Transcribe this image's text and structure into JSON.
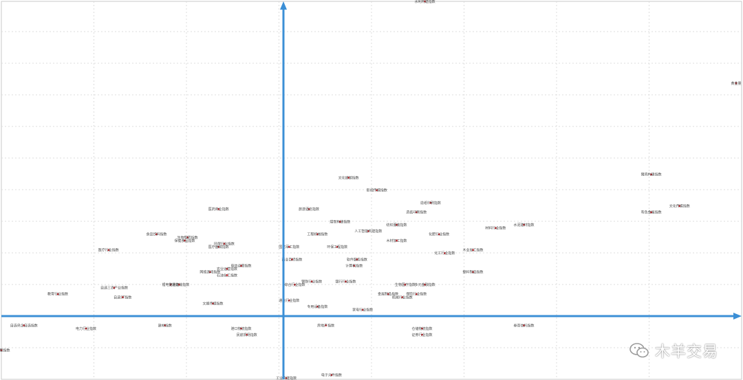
{
  "chart_data": {
    "type": "scatter",
    "title": "",
    "xlabel": "",
    "ylabel": "",
    "grid": true,
    "xlim": [
      -10,
      16
    ],
    "ylim": [
      -2,
      10
    ],
    "points": [
      {
        "label": "水利构建指数",
        "x": 5.0,
        "y": 10.0
      },
      {
        "label": "黄金量",
        "x": 16.0,
        "y": 7.4
      },
      {
        "label": "猪肉构建指数",
        "x": 13.0,
        "y": 4.5
      },
      {
        "label": "文化传媒指数",
        "x": 14.0,
        "y": 3.5
      },
      {
        "label": "有色金属指数",
        "x": 13.0,
        "y": 3.3
      },
      {
        "label": "文化旅游指数",
        "x": 2.3,
        "y": 4.4
      },
      {
        "label": "影视传媒指数",
        "x": 3.3,
        "y": 4.0
      },
      {
        "label": "造纸印刷指数",
        "x": 5.2,
        "y": 3.6
      },
      {
        "label": "造纸印刷指数",
        "x": 4.7,
        "y": 3.3
      },
      {
        "label": "旅游酒店指数",
        "x": 0.9,
        "y": 3.4
      },
      {
        "label": "煤炭构建指数",
        "x": 2.0,
        "y": 3.0
      },
      {
        "label": "纺织服装指数",
        "x": 4.0,
        "y": 2.9
      },
      {
        "label": "人工智能构建指数",
        "x": 3.0,
        "y": 2.7
      },
      {
        "label": "化肥行业指数",
        "x": 5.5,
        "y": 2.6
      },
      {
        "label": "材料行业指数",
        "x": 7.5,
        "y": 2.8
      },
      {
        "label": "水泥建材指数",
        "x": 8.5,
        "y": 2.9
      },
      {
        "label": "工程机械指数",
        "x": 1.2,
        "y": 2.6
      },
      {
        "label": "木材加工指数",
        "x": 4.0,
        "y": 2.4
      },
      {
        "label": "国防军工指数",
        "x": 0.2,
        "y": 2.2
      },
      {
        "label": "环保工程指数",
        "x": 1.9,
        "y": 2.2
      },
      {
        "label": "化工行业指数",
        "x": 5.7,
        "y": 2.0
      },
      {
        "label": "木业加工指数",
        "x": 6.7,
        "y": 2.1
      },
      {
        "label": "商业百货指数",
        "x": 0.3,
        "y": 1.8
      },
      {
        "label": "软件服务指数",
        "x": 2.6,
        "y": 1.8
      },
      {
        "label": "计算机指数",
        "x": 2.5,
        "y": 1.6
      },
      {
        "label": "塑料制品指数",
        "x": 6.7,
        "y": 1.4
      },
      {
        "label": "医药商业指数",
        "x": -2.3,
        "y": 3.4
      },
      {
        "label": "食品饮料指数",
        "x": -4.5,
        "y": 2.6
      },
      {
        "label": "生物制药指数",
        "x": -3.4,
        "y": 2.5
      },
      {
        "label": "保健食品指数",
        "x": -3.5,
        "y": 2.4
      },
      {
        "label": "环保行业指数",
        "x": -2.1,
        "y": 2.3
      },
      {
        "label": "医疗器械指数",
        "x": -2.3,
        "y": 2.2
      },
      {
        "label": "医疗行业指数",
        "x": -6.2,
        "y": 2.1
      },
      {
        "label": "电信运营指数",
        "x": -1.5,
        "y": 1.6
      },
      {
        "label": "农业运营指数",
        "x": -2.0,
        "y": 1.5
      },
      {
        "label": "网络游戏指数",
        "x": -2.6,
        "y": 1.4
      },
      {
        "label": "石油化工指数",
        "x": -2.0,
        "y": 1.3
      },
      {
        "label": "锂电池指数",
        "x": -4.0,
        "y": 1.0
      },
      {
        "label": "交通运输指数",
        "x": -3.7,
        "y": 1.0
      },
      {
        "label": "自选三农产业指数",
        "x": -6.0,
        "y": 0.9
      },
      {
        "label": "自选ST指数",
        "x": -5.7,
        "y": 0.6
      },
      {
        "label": "教育行业指数",
        "x": -8.0,
        "y": 0.7
      },
      {
        "label": "文娱传媒指数",
        "x": -2.5,
        "y": 0.4
      },
      {
        "label": "钢铁行业指数",
        "x": 1.0,
        "y": 1.1
      },
      {
        "label": "综合行业指数",
        "x": 0.4,
        "y": 1.0
      },
      {
        "label": "银行行业指数",
        "x": 2.2,
        "y": 1.1
      },
      {
        "label": "生物医疗指数",
        "x": 4.3,
        "y": 1.0
      },
      {
        "label": "多元金融指数",
        "x": 5.0,
        "y": 1.0
      },
      {
        "label": "金属制品指数",
        "x": 3.7,
        "y": 0.7
      },
      {
        "label": "保险行业指数",
        "x": 4.7,
        "y": 0.7
      },
      {
        "label": "机械行业指数",
        "x": 4.2,
        "y": 0.6
      },
      {
        "label": "通信行业指数",
        "x": 0.2,
        "y": 0.5
      },
      {
        "label": "专用设备指数",
        "x": 1.2,
        "y": 0.3
      },
      {
        "label": "家电行业指数",
        "x": 2.8,
        "y": 0.2
      },
      {
        "label": "自选央企自选指数",
        "x": -9.2,
        "y": -0.3
      },
      {
        "label": "电力行业指数",
        "x": -7.0,
        "y": -0.4
      },
      {
        "label": "建材指数",
        "x": -4.2,
        "y": -0.3
      },
      {
        "label": "港口物流指数",
        "x": -1.5,
        "y": -0.4
      },
      {
        "label": "民航机场指数",
        "x": -1.3,
        "y": -0.6
      },
      {
        "label": "房地产指数",
        "x": 1.5,
        "y": -0.3
      },
      {
        "label": "仓储物流指数",
        "x": 4.9,
        "y": -0.4
      },
      {
        "label": "证券行业指数",
        "x": 4.9,
        "y": -0.6
      },
      {
        "label": "券商信托指数",
        "x": 8.5,
        "y": -0.3
      },
      {
        "label": "龙头股指数",
        "x": -10.0,
        "y": -1.1
      },
      {
        "label": "工业构建指数",
        "x": 0.1,
        "y": -2.0
      },
      {
        "label": "电子元件指数",
        "x": 1.7,
        "y": -1.9
      }
    ]
  },
  "watermark": {
    "text": "木羊交易",
    "icon": "wechat-bubbles-icon"
  },
  "colors": {
    "axis": "#3b8fd6",
    "marker": "#c1272d",
    "grid": "#dcdcdc"
  }
}
